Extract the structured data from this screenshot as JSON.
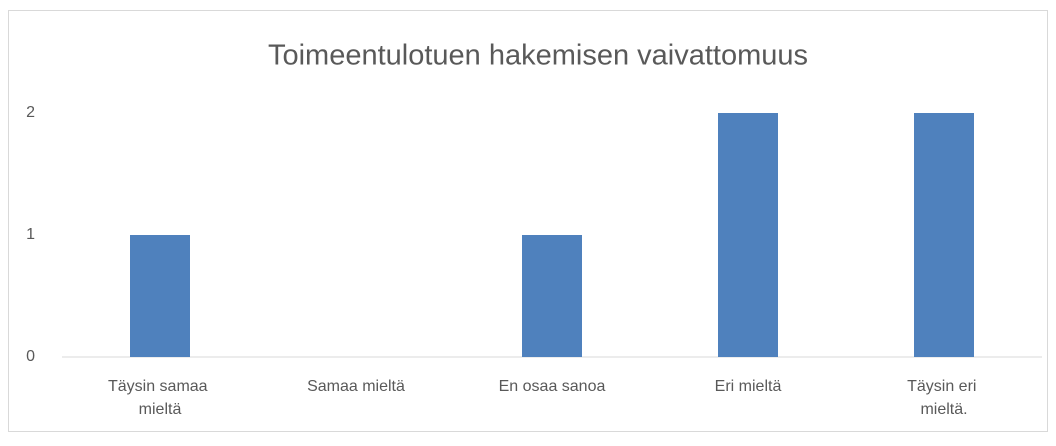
{
  "chart_data": {
    "type": "bar",
    "title": "Toimeentulotuen hakemisen vaivattomuus",
    "categories": [
      "Täysin samaa mieltä",
      "Samaa mieltä",
      "En osaa sanoa",
      "Eri mieltä",
      "Täysin eri mieltä."
    ],
    "values": [
      1,
      0,
      1,
      2,
      2
    ],
    "color": "#4f81bd",
    "ylim": [
      0,
      2
    ],
    "yticks": [
      0,
      1,
      2
    ],
    "grid": false
  }
}
